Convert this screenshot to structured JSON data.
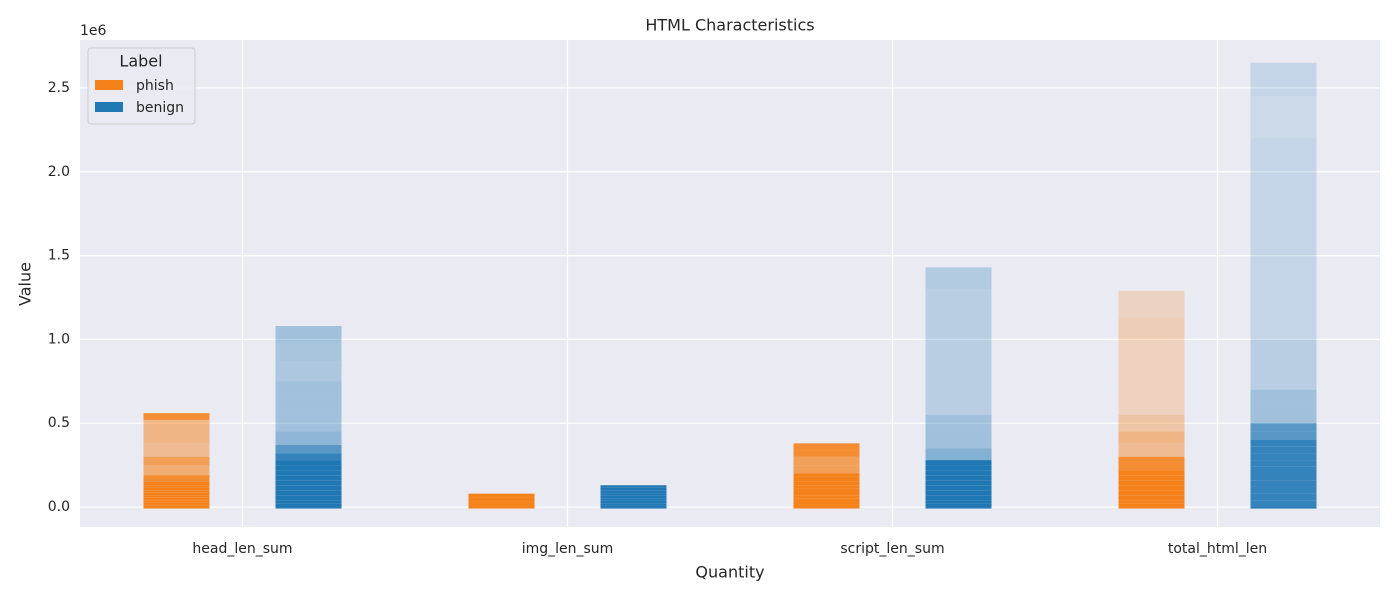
{
  "chart_data": {
    "type": "strip",
    "title": "HTML Characteristics",
    "x_label": "Quantity",
    "y_label": "Value",
    "y_offset_text": "1e6",
    "categories": [
      "head_len_sum",
      "img_len_sum",
      "script_len_sum",
      "total_html_len"
    ],
    "ylim": [
      -119000,
      2786000
    ],
    "yticks": [
      {
        "value": 0,
        "label": "0.0"
      },
      {
        "value": 500000,
        "label": "0.5"
      },
      {
        "value": 1000000,
        "label": "1.0"
      },
      {
        "value": 1500000,
        "label": "1.5"
      },
      {
        "value": 2000000,
        "label": "2.0"
      },
      {
        "value": 2500000,
        "label": "2.5"
      }
    ],
    "grid": true,
    "legend_title": "Label",
    "legend_position": "upper-left",
    "series": [
      {
        "name": "phish",
        "color": "#f5811a",
        "values": [
          [
            0,
            10000,
            25000,
            40000,
            55000,
            70000,
            85000,
            100000,
            115000,
            130000,
            150000,
            190000,
            250000,
            300000,
            380000,
            450000,
            520000,
            560000
          ],
          [
            0,
            8000,
            16000,
            24000,
            32000,
            40000,
            48000,
            56000,
            64000,
            72000,
            80000
          ],
          [
            0,
            15000,
            30000,
            50000,
            70000,
            90000,
            110000,
            130000,
            150000,
            180000,
            200000,
            250000,
            300000,
            340000,
            380000
          ],
          [
            0,
            20000,
            40000,
            70000,
            100000,
            130000,
            160000,
            190000,
            220000,
            260000,
            300000,
            380000,
            450000,
            550000,
            700000,
            850000,
            1000000,
            1130000,
            1290000
          ]
        ]
      },
      {
        "name": "benign",
        "color": "#1f77b4",
        "values": [
          [
            0,
            20000,
            40000,
            70000,
            100000,
            130000,
            160000,
            190000,
            220000,
            250000,
            280000,
            320000,
            370000,
            450000,
            550000,
            650000,
            750000,
            870000,
            980000,
            1080000
          ],
          [
            0,
            10000,
            20000,
            30000,
            40000,
            50000,
            60000,
            70000,
            80000,
            90000,
            100000,
            115000,
            130000
          ],
          [
            0,
            20000,
            40000,
            70000,
            100000,
            130000,
            160000,
            190000,
            220000,
            250000,
            280000,
            350000,
            450000,
            550000,
            700000,
            850000,
            1000000,
            1150000,
            1300000,
            1430000
          ],
          [
            0,
            40000,
            80000,
            120000,
            160000,
            200000,
            240000,
            280000,
            320000,
            360000,
            400000,
            450000,
            500000,
            600000,
            700000,
            850000,
            1000000,
            1200000,
            1400000,
            1600000,
            1800000,
            2000000,
            2200000,
            2450000,
            2650000
          ]
        ]
      }
    ]
  }
}
